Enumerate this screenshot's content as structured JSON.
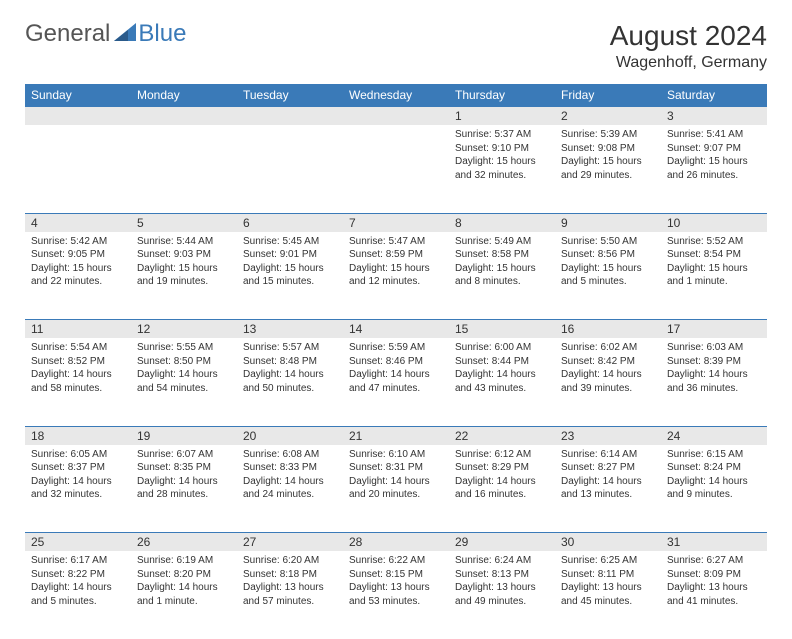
{
  "logo": {
    "general": "General",
    "blue": "Blue"
  },
  "title": "August 2024",
  "location": "Wagenhoff, Germany",
  "weekdays": [
    "Sunday",
    "Monday",
    "Tuesday",
    "Wednesday",
    "Thursday",
    "Friday",
    "Saturday"
  ],
  "colors": {
    "header_bg": "#3a7ab8",
    "day_bg": "#e8e8e8"
  },
  "weeks": [
    {
      "nums": [
        "",
        "",
        "",
        "",
        "1",
        "2",
        "3"
      ],
      "cells": [
        {
          "sunrise": "",
          "sunset": "",
          "daylight": ""
        },
        {
          "sunrise": "",
          "sunset": "",
          "daylight": ""
        },
        {
          "sunrise": "",
          "sunset": "",
          "daylight": ""
        },
        {
          "sunrise": "",
          "sunset": "",
          "daylight": ""
        },
        {
          "sunrise": "Sunrise: 5:37 AM",
          "sunset": "Sunset: 9:10 PM",
          "daylight": "Daylight: 15 hours and 32 minutes."
        },
        {
          "sunrise": "Sunrise: 5:39 AM",
          "sunset": "Sunset: 9:08 PM",
          "daylight": "Daylight: 15 hours and 29 minutes."
        },
        {
          "sunrise": "Sunrise: 5:41 AM",
          "sunset": "Sunset: 9:07 PM",
          "daylight": "Daylight: 15 hours and 26 minutes."
        }
      ]
    },
    {
      "nums": [
        "4",
        "5",
        "6",
        "7",
        "8",
        "9",
        "10"
      ],
      "cells": [
        {
          "sunrise": "Sunrise: 5:42 AM",
          "sunset": "Sunset: 9:05 PM",
          "daylight": "Daylight: 15 hours and 22 minutes."
        },
        {
          "sunrise": "Sunrise: 5:44 AM",
          "sunset": "Sunset: 9:03 PM",
          "daylight": "Daylight: 15 hours and 19 minutes."
        },
        {
          "sunrise": "Sunrise: 5:45 AM",
          "sunset": "Sunset: 9:01 PM",
          "daylight": "Daylight: 15 hours and 15 minutes."
        },
        {
          "sunrise": "Sunrise: 5:47 AM",
          "sunset": "Sunset: 8:59 PM",
          "daylight": "Daylight: 15 hours and 12 minutes."
        },
        {
          "sunrise": "Sunrise: 5:49 AM",
          "sunset": "Sunset: 8:58 PM",
          "daylight": "Daylight: 15 hours and 8 minutes."
        },
        {
          "sunrise": "Sunrise: 5:50 AM",
          "sunset": "Sunset: 8:56 PM",
          "daylight": "Daylight: 15 hours and 5 minutes."
        },
        {
          "sunrise": "Sunrise: 5:52 AM",
          "sunset": "Sunset: 8:54 PM",
          "daylight": "Daylight: 15 hours and 1 minute."
        }
      ]
    },
    {
      "nums": [
        "11",
        "12",
        "13",
        "14",
        "15",
        "16",
        "17"
      ],
      "cells": [
        {
          "sunrise": "Sunrise: 5:54 AM",
          "sunset": "Sunset: 8:52 PM",
          "daylight": "Daylight: 14 hours and 58 minutes."
        },
        {
          "sunrise": "Sunrise: 5:55 AM",
          "sunset": "Sunset: 8:50 PM",
          "daylight": "Daylight: 14 hours and 54 minutes."
        },
        {
          "sunrise": "Sunrise: 5:57 AM",
          "sunset": "Sunset: 8:48 PM",
          "daylight": "Daylight: 14 hours and 50 minutes."
        },
        {
          "sunrise": "Sunrise: 5:59 AM",
          "sunset": "Sunset: 8:46 PM",
          "daylight": "Daylight: 14 hours and 47 minutes."
        },
        {
          "sunrise": "Sunrise: 6:00 AM",
          "sunset": "Sunset: 8:44 PM",
          "daylight": "Daylight: 14 hours and 43 minutes."
        },
        {
          "sunrise": "Sunrise: 6:02 AM",
          "sunset": "Sunset: 8:42 PM",
          "daylight": "Daylight: 14 hours and 39 minutes."
        },
        {
          "sunrise": "Sunrise: 6:03 AM",
          "sunset": "Sunset: 8:39 PM",
          "daylight": "Daylight: 14 hours and 36 minutes."
        }
      ]
    },
    {
      "nums": [
        "18",
        "19",
        "20",
        "21",
        "22",
        "23",
        "24"
      ],
      "cells": [
        {
          "sunrise": "Sunrise: 6:05 AM",
          "sunset": "Sunset: 8:37 PM",
          "daylight": "Daylight: 14 hours and 32 minutes."
        },
        {
          "sunrise": "Sunrise: 6:07 AM",
          "sunset": "Sunset: 8:35 PM",
          "daylight": "Daylight: 14 hours and 28 minutes."
        },
        {
          "sunrise": "Sunrise: 6:08 AM",
          "sunset": "Sunset: 8:33 PM",
          "daylight": "Daylight: 14 hours and 24 minutes."
        },
        {
          "sunrise": "Sunrise: 6:10 AM",
          "sunset": "Sunset: 8:31 PM",
          "daylight": "Daylight: 14 hours and 20 minutes."
        },
        {
          "sunrise": "Sunrise: 6:12 AM",
          "sunset": "Sunset: 8:29 PM",
          "daylight": "Daylight: 14 hours and 16 minutes."
        },
        {
          "sunrise": "Sunrise: 6:14 AM",
          "sunset": "Sunset: 8:27 PM",
          "daylight": "Daylight: 14 hours and 13 minutes."
        },
        {
          "sunrise": "Sunrise: 6:15 AM",
          "sunset": "Sunset: 8:24 PM",
          "daylight": "Daylight: 14 hours and 9 minutes."
        }
      ]
    },
    {
      "nums": [
        "25",
        "26",
        "27",
        "28",
        "29",
        "30",
        "31"
      ],
      "cells": [
        {
          "sunrise": "Sunrise: 6:17 AM",
          "sunset": "Sunset: 8:22 PM",
          "daylight": "Daylight: 14 hours and 5 minutes."
        },
        {
          "sunrise": "Sunrise: 6:19 AM",
          "sunset": "Sunset: 8:20 PM",
          "daylight": "Daylight: 14 hours and 1 minute."
        },
        {
          "sunrise": "Sunrise: 6:20 AM",
          "sunset": "Sunset: 8:18 PM",
          "daylight": "Daylight: 13 hours and 57 minutes."
        },
        {
          "sunrise": "Sunrise: 6:22 AM",
          "sunset": "Sunset: 8:15 PM",
          "daylight": "Daylight: 13 hours and 53 minutes."
        },
        {
          "sunrise": "Sunrise: 6:24 AM",
          "sunset": "Sunset: 8:13 PM",
          "daylight": "Daylight: 13 hours and 49 minutes."
        },
        {
          "sunrise": "Sunrise: 6:25 AM",
          "sunset": "Sunset: 8:11 PM",
          "daylight": "Daylight: 13 hours and 45 minutes."
        },
        {
          "sunrise": "Sunrise: 6:27 AM",
          "sunset": "Sunset: 8:09 PM",
          "daylight": "Daylight: 13 hours and 41 minutes."
        }
      ]
    }
  ]
}
